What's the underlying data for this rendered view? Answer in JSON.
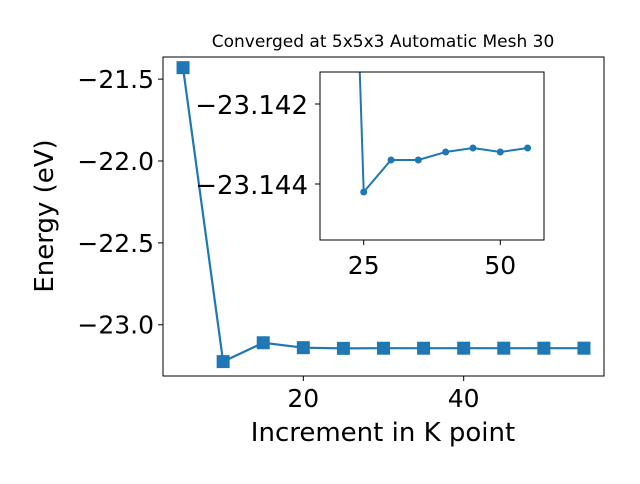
{
  "chart_data": [
    {
      "type": "line",
      "title": "Converged at 5x5x3 Automatic Mesh 30",
      "xlabel": "Increment in K point",
      "ylabel": "Energy (eV)",
      "xlim": [
        2.5,
        57.5
      ],
      "ylim": [
        -23.313,
        -21.365
      ],
      "xticks": [
        20,
        40
      ],
      "xtick_labels": [
        "20",
        "40"
      ],
      "yticks": [
        -21.5,
        -22.0,
        -22.5,
        -23.0
      ],
      "ytick_labels": [
        "−21.5",
        "−22.0",
        "−22.5",
        "−23.0"
      ],
      "marker": "square",
      "color": "#1f77b4",
      "grid": false,
      "series": [
        {
          "x": [
            5,
            10,
            15,
            20,
            25,
            30,
            35,
            40,
            45,
            50,
            55
          ],
          "y": [
            -21.43,
            -23.225,
            -23.11,
            -23.14,
            -23.1442,
            -23.1434,
            -23.1434,
            -23.1432,
            -23.1431,
            -23.1432,
            -23.1431
          ]
        }
      ]
    },
    {
      "type": "line",
      "title": "",
      "xlim": [
        17,
        58
      ],
      "ylim": [
        -23.1454,
        -23.1412
      ],
      "xticks": [
        25,
        50
      ],
      "xtick_labels": [
        "25",
        "50"
      ],
      "yticks": [
        -23.144,
        -23.142
      ],
      "ytick_labels": [
        "−23.144",
        "−23.142"
      ],
      "marker": "circle",
      "color": "#1f77b4",
      "grid": false,
      "series": [
        {
          "x": [
            25,
            30,
            35,
            40,
            45,
            50,
            55
          ],
          "y": [
            -23.1442,
            -23.1434,
            -23.1434,
            -23.1432,
            -23.1431,
            -23.1432,
            -23.1431
          ],
          "clipped_lead_in": {
            "x": 24,
            "y": -23.14
          }
        }
      ]
    }
  ]
}
